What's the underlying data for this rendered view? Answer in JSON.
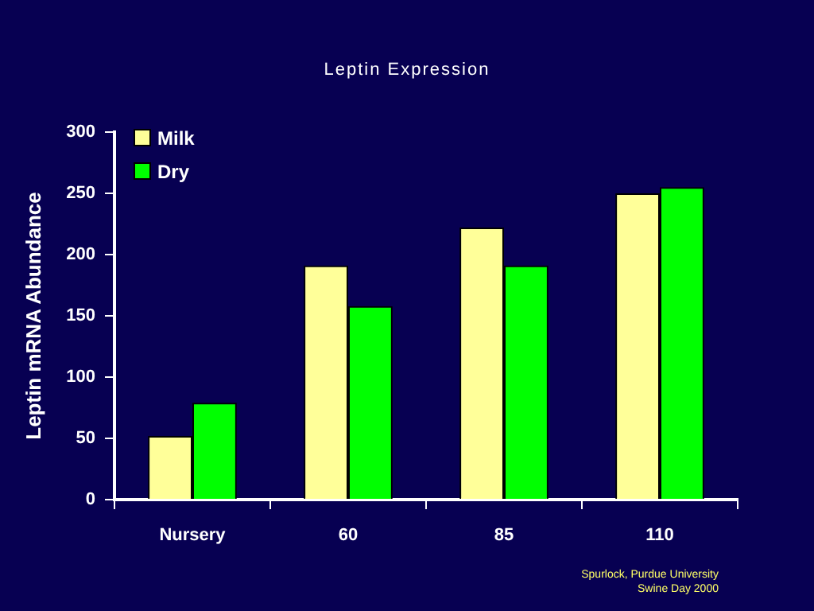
{
  "chart_data": {
    "type": "bar",
    "title": "Leptin Expression",
    "ylabel": "Leptin mRNA Abundance",
    "categories": [
      "Nursery",
      "60",
      "85",
      "110"
    ],
    "series": [
      {
        "name": "Milk",
        "color": "#ffff99",
        "values": [
          52,
          191,
          222,
          250
        ]
      },
      {
        "name": "Dry",
        "color": "#00ff00",
        "values": [
          79,
          158,
          191,
          255
        ]
      }
    ],
    "ylim": [
      0,
      300
    ],
    "yticks": [
      0,
      50,
      100,
      150,
      200,
      250,
      300
    ],
    "grid": false,
    "legend": "top left",
    "annotations": [
      "Spurlock, Purdue University",
      "Swine Day 2000"
    ]
  }
}
